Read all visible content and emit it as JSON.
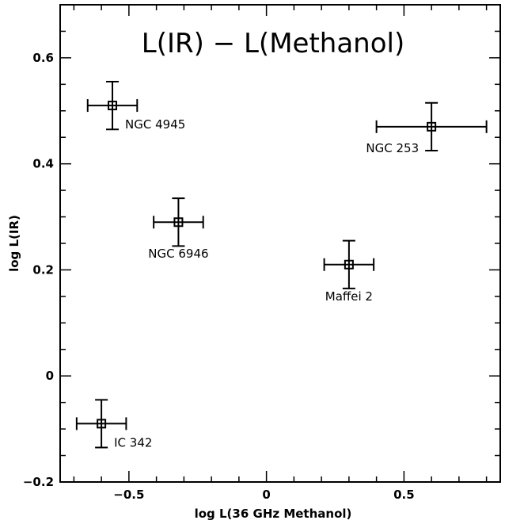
{
  "chart_data": {
    "type": "scatter",
    "title": "L(IR) − L(Methanol)",
    "xlabel": "log L(36 GHz Methanol)",
    "ylabel": "log L(IR)",
    "xlim": [
      -0.75,
      0.85
    ],
    "ylim": [
      -0.2,
      0.7
    ],
    "x_ticks": [
      -0.5,
      0,
      0.5
    ],
    "x_tick_labels": [
      "−0.5",
      "0",
      "0.5"
    ],
    "y_ticks": [
      -0.2,
      0,
      0.2,
      0.4,
      0.6
    ],
    "y_tick_labels": [
      "−0.2",
      "0",
      "0.2",
      "0.4",
      "0.6"
    ],
    "grid": false,
    "points": [
      {
        "label": "NGC 4945",
        "x": -0.56,
        "y": 0.51,
        "xerr": 0.09,
        "yerr": 0.045,
        "label_pos": "below-right"
      },
      {
        "label": "NGC 253",
        "x": 0.6,
        "y": 0.47,
        "xerr": 0.2,
        "yerr": 0.045,
        "label_pos": "below-left"
      },
      {
        "label": "NGC 6946",
        "x": -0.32,
        "y": 0.29,
        "xerr": 0.09,
        "yerr": 0.045,
        "label_pos": "below"
      },
      {
        "label": "Maffei 2",
        "x": 0.3,
        "y": 0.21,
        "xerr": 0.09,
        "yerr": 0.045,
        "label_pos": "below"
      },
      {
        "label": "IC 342",
        "x": -0.6,
        "y": -0.09,
        "xerr": 0.09,
        "yerr": 0.045,
        "label_pos": "below-right"
      }
    ]
  }
}
